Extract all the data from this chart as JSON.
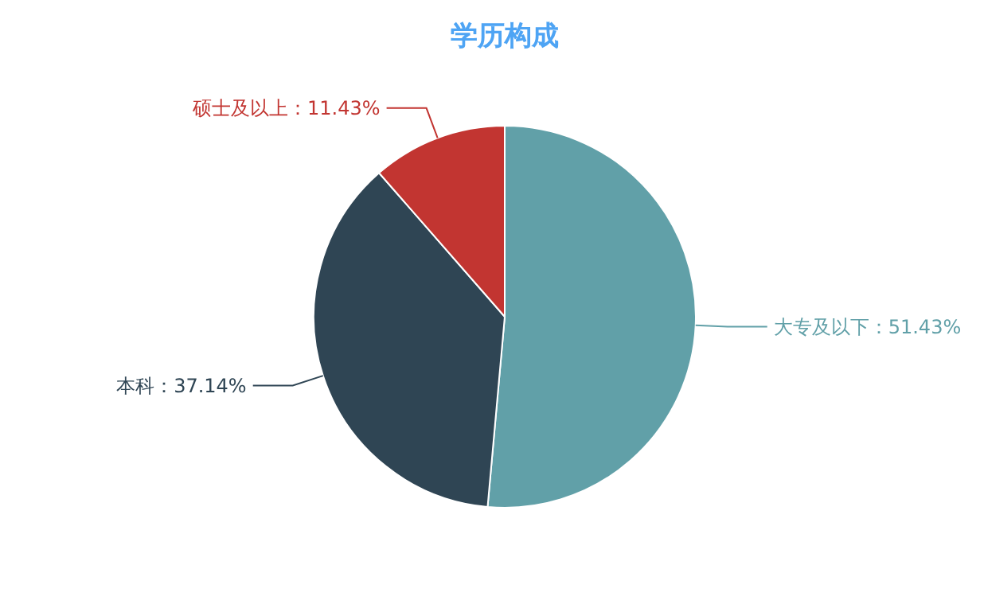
{
  "chart_data": {
    "type": "pie",
    "title": "学历构成",
    "categories": [
      "大专及以下",
      "本科",
      "硕士及以上"
    ],
    "values": [
      51.43,
      37.14,
      11.43
    ],
    "colors": [
      "#61a0a8",
      "#2f4554",
      "#c23531"
    ],
    "value_labels": [
      "51.43%",
      "37.14%",
      "11.43%"
    ]
  }
}
